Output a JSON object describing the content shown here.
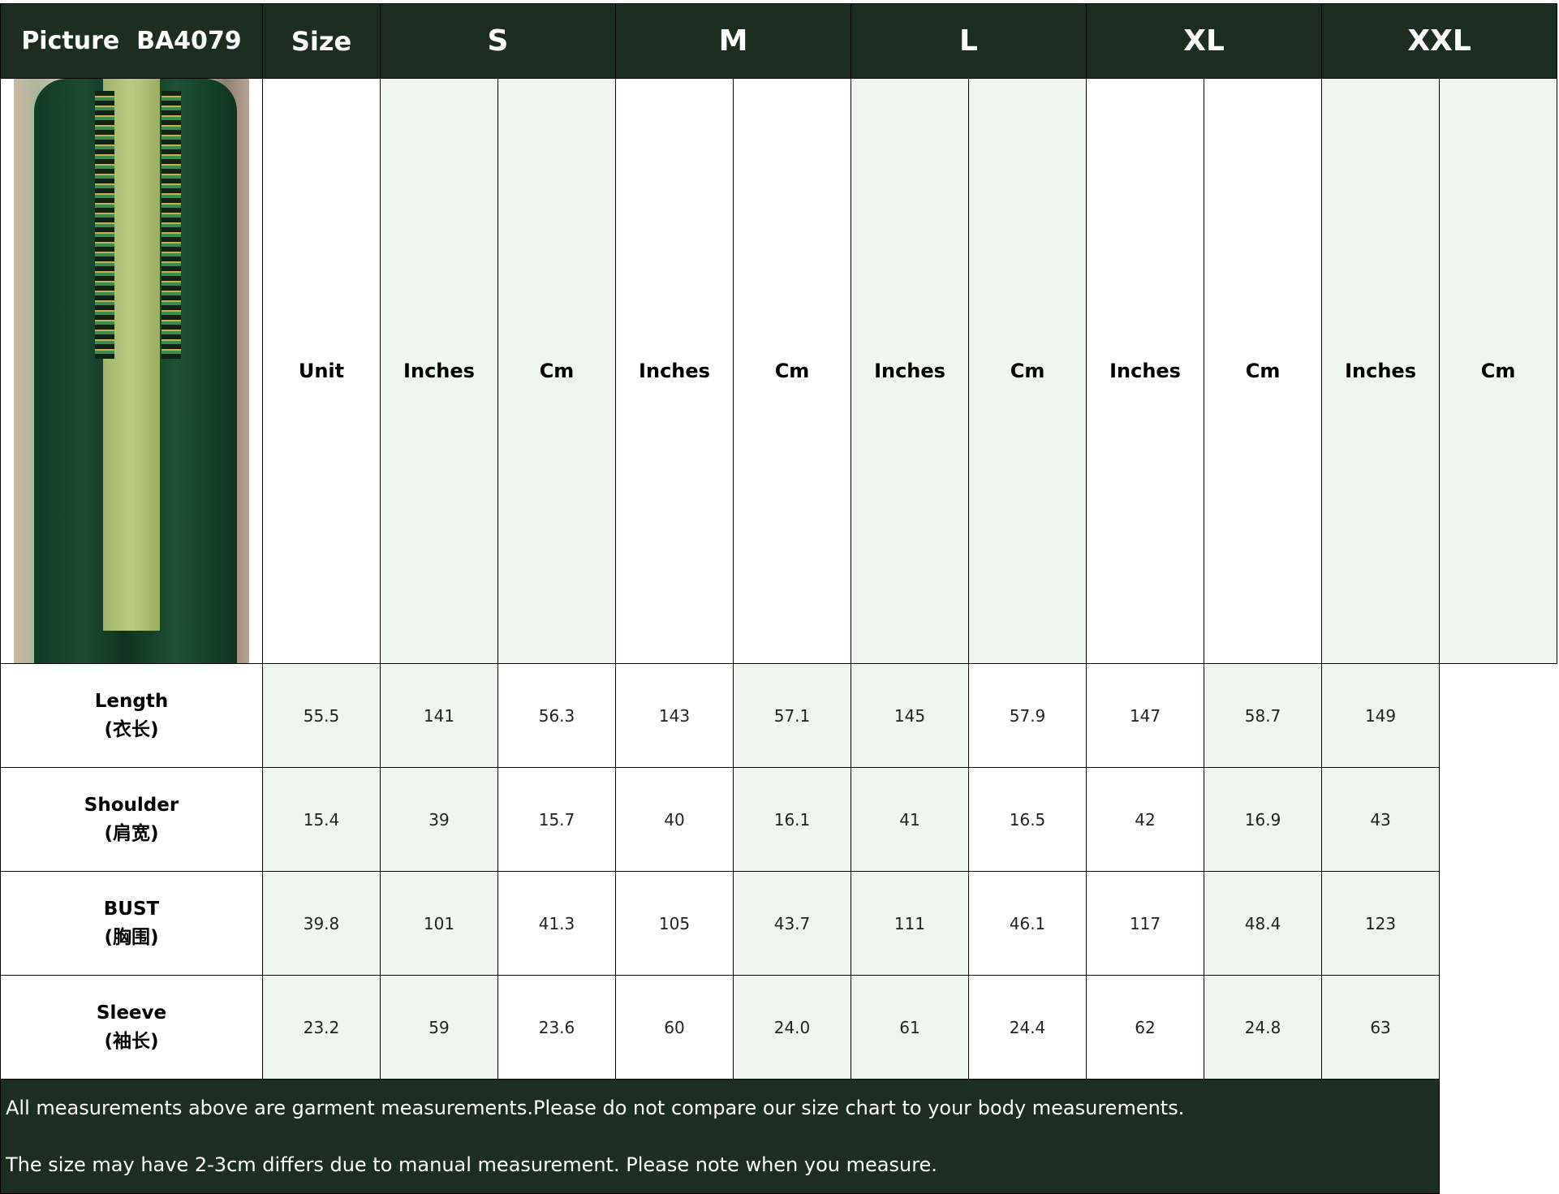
{
  "header": {
    "picture_label": "Picture  BA4079",
    "size_label": "Size",
    "sizes": [
      "S",
      "M",
      "L",
      "XL",
      "XXL"
    ]
  },
  "unit_row": {
    "label": "Unit",
    "units": [
      "Inches",
      "Cm"
    ]
  },
  "rows": [
    {
      "label": "Length",
      "label_cn": "(衣长)",
      "values": [
        "55.5",
        "141",
        "56.3",
        "143",
        "57.1",
        "145",
        "57.9",
        "147",
        "58.7",
        "149"
      ]
    },
    {
      "label": "Shoulder",
      "label_cn": "(肩宽)",
      "values": [
        "15.4",
        "39",
        "15.7",
        "40",
        "16.1",
        "41",
        "16.5",
        "42",
        "16.9",
        "43"
      ]
    },
    {
      "label": "BUST",
      "label_cn": "(胸围)",
      "values": [
        "39.8",
        "101",
        "41.3",
        "105",
        "43.7",
        "111",
        "46.1",
        "117",
        "48.4",
        "123"
      ]
    },
    {
      "label": "Sleeve",
      "label_cn": "(袖长)",
      "values": [
        "23.2",
        "59",
        "23.6",
        "60",
        "24.0",
        "61",
        "24.4",
        "62",
        "24.8",
        "63"
      ]
    }
  ],
  "notes": [
    "All measurements above are garment measurements.Please do not compare our size chart to your body measurements.",
    "The size may have 2-3cm differs due to manual measurement. Please note when you measure."
  ],
  "colors": {
    "header_bg": "#1b2e20",
    "shade": "#edf7f0"
  }
}
